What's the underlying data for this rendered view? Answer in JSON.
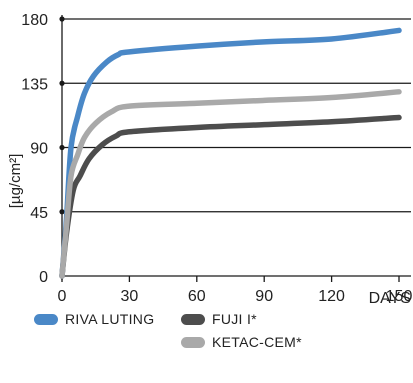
{
  "chart_data": {
    "type": "line",
    "title": "",
    "xlabel": "DAYS",
    "ylabel": "[µg/cm²]",
    "xlim": [
      0,
      150
    ],
    "ylim": [
      0,
      180
    ],
    "xticks": [
      0,
      30,
      60,
      90,
      120,
      150
    ],
    "yticks": [
      0,
      45,
      90,
      135,
      180
    ],
    "grid": "horizontal",
    "legend": "bottom",
    "series": [
      {
        "name": "RIVA LUTING",
        "color": "#4a88c7",
        "points": [
          [
            0,
            0
          ],
          [
            2,
            40
          ],
          [
            4,
            90
          ],
          [
            7,
            112
          ],
          [
            10,
            128
          ],
          [
            14,
            140
          ],
          [
            20,
            150
          ],
          [
            25,
            155
          ],
          [
            30,
            157
          ],
          [
            60,
            161
          ],
          [
            90,
            164
          ],
          [
            120,
            166
          ],
          [
            150,
            172
          ]
        ]
      },
      {
        "name": "FUJI I*",
        "color": "#4d4d4d",
        "points": [
          [
            0,
            0
          ],
          [
            2,
            30
          ],
          [
            5,
            60
          ],
          [
            8,
            70
          ],
          [
            12,
            82
          ],
          [
            18,
            92
          ],
          [
            24,
            98
          ],
          [
            30,
            101
          ],
          [
            60,
            104
          ],
          [
            90,
            106
          ],
          [
            120,
            108
          ],
          [
            150,
            111
          ]
        ]
      },
      {
        "name": "KETAC-CEM*",
        "color": "#a9a9a9",
        "points": [
          [
            0,
            0
          ],
          [
            2,
            35
          ],
          [
            4,
            70
          ],
          [
            7,
            85
          ],
          [
            10,
            97
          ],
          [
            15,
            107
          ],
          [
            22,
            115
          ],
          [
            30,
            119
          ],
          [
            60,
            121
          ],
          [
            90,
            123
          ],
          [
            120,
            125
          ],
          [
            150,
            129
          ]
        ]
      }
    ]
  }
}
